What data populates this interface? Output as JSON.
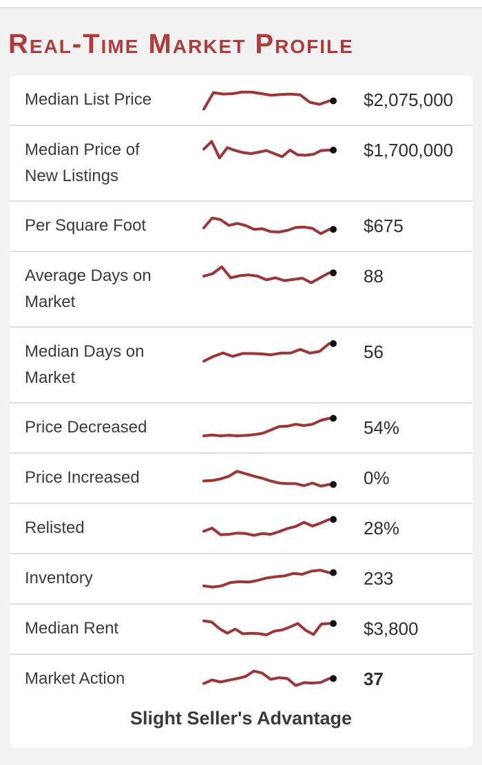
{
  "page": {
    "title": "Real-Time Market Profile",
    "footer_status": "Slight Seller's Advantage"
  },
  "colors": {
    "accent_red": "#a23335",
    "title_red": "#b03b38",
    "dot_black": "#111111",
    "page_bg": "#f2f2f2",
    "card_bg": "#ffffff",
    "divider": "#e0e0e0",
    "label_text": "#3b3b3b",
    "value_text": "#2f2f2f"
  },
  "chart_data": [
    {
      "type": "line",
      "label": "Median List Price",
      "value": "$2,075,000",
      "bold": false,
      "trend": [
        0.05,
        0.85,
        0.78,
        0.8,
        0.88,
        0.87,
        0.8,
        0.72,
        0.76,
        0.78,
        0.74,
        0.38,
        0.28,
        0.45
      ]
    },
    {
      "type": "line",
      "label": "Median Price of New Listings",
      "value": "$1,700,000",
      "bold": false,
      "trend": [
        0.55,
        0.92,
        0.12,
        0.62,
        0.48,
        0.38,
        0.33,
        0.4,
        0.48,
        0.33,
        0.18,
        0.5,
        0.27,
        0.25,
        0.3,
        0.48,
        0.5
      ]
    },
    {
      "type": "line",
      "label": "Per Square Foot",
      "value": "$675",
      "bold": false,
      "trend": [
        0.4,
        0.88,
        0.8,
        0.52,
        0.62,
        0.52,
        0.33,
        0.36,
        0.22,
        0.2,
        0.28,
        0.42,
        0.44,
        0.38,
        0.12,
        0.33
      ]
    },
    {
      "type": "line",
      "label": "Average Days on Market",
      "value": "88",
      "bold": false,
      "trend": [
        0.5,
        0.62,
        0.95,
        0.42,
        0.52,
        0.56,
        0.5,
        0.32,
        0.42,
        0.28,
        0.34,
        0.4,
        0.18,
        0.42,
        0.66
      ]
    },
    {
      "type": "line",
      "label": "Median Days on Market",
      "value": "56",
      "bold": false,
      "trend": [
        0.05,
        0.28,
        0.45,
        0.28,
        0.42,
        0.42,
        0.4,
        0.36,
        0.44,
        0.44,
        0.62,
        0.44,
        0.52,
        0.9
      ]
    },
    {
      "type": "line",
      "label": "Price Decreased",
      "value": "54%",
      "bold": false,
      "trend": [
        0.1,
        0.14,
        0.1,
        0.13,
        0.1,
        0.12,
        0.16,
        0.22,
        0.38,
        0.55,
        0.57,
        0.66,
        0.6,
        0.66,
        0.85,
        0.95
      ]
    },
    {
      "type": "line",
      "label": "Price Increased",
      "value": "0%",
      "bold": false,
      "trend": [
        0.35,
        0.37,
        0.45,
        0.58,
        0.82,
        0.7,
        0.58,
        0.48,
        0.35,
        0.25,
        0.22,
        0.22,
        0.12,
        0.25,
        0.1,
        0.18
      ]
    },
    {
      "type": "line",
      "label": "Relisted",
      "value": "28%",
      "bold": false,
      "trend": [
        0.35,
        0.5,
        0.18,
        0.2,
        0.26,
        0.24,
        0.15,
        0.24,
        0.2,
        0.33,
        0.48,
        0.58,
        0.78,
        0.6,
        0.75,
        0.92
      ]
    },
    {
      "type": "line",
      "label": "Inventory",
      "value": "233",
      "bold": false,
      "trend": [
        0.14,
        0.08,
        0.14,
        0.3,
        0.34,
        0.32,
        0.4,
        0.52,
        0.58,
        0.62,
        0.74,
        0.7,
        0.85,
        0.9,
        0.78
      ]
    },
    {
      "type": "line",
      "label": "Median Rent",
      "value": "$3,800",
      "bold": false,
      "trend": [
        0.88,
        0.82,
        0.5,
        0.28,
        0.48,
        0.25,
        0.28,
        0.26,
        0.2,
        0.38,
        0.44,
        0.58,
        0.75,
        0.42,
        0.22,
        0.72,
        0.75
      ]
    },
    {
      "type": "line",
      "label": "Market Action",
      "value": "37",
      "bold": true,
      "trend": [
        0.28,
        0.45,
        0.35,
        0.44,
        0.52,
        0.62,
        0.88,
        0.78,
        0.48,
        0.56,
        0.52,
        0.18,
        0.32,
        0.3,
        0.33,
        0.52
      ]
    }
  ]
}
